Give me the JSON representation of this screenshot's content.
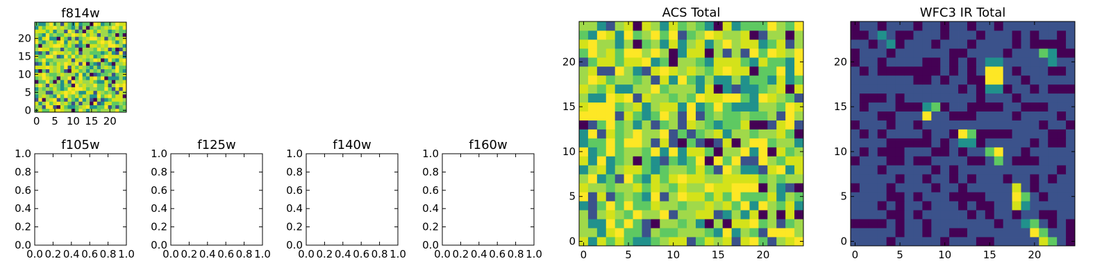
{
  "figure": {
    "colormap": [
      "#440154",
      "#3b528b",
      "#21918c",
      "#5ec962",
      "#a0d94a",
      "#d4e21a",
      "#fde725"
    ]
  },
  "chart_data": [
    {
      "type": "heatmap",
      "title": "f814w",
      "xticks": [
        "0",
        "5",
        "10",
        "15",
        "20"
      ],
      "yticks": [
        "0",
        "5",
        "10",
        "15",
        "20"
      ],
      "xlim": [
        -0.5,
        24.5
      ],
      "ylim": [
        -0.5,
        24.5
      ],
      "grid_size": 25,
      "pattern": "noise",
      "seed": 71
    },
    {
      "type": "empty",
      "title": "f105w",
      "xticks": [
        "0.0",
        "0.2",
        "0.4",
        "0.6",
        "0.8",
        "1.0"
      ],
      "yticks": [
        "0.0",
        "0.2",
        "0.4",
        "0.6",
        "0.8",
        "1.0"
      ],
      "xlim": [
        0,
        1
      ],
      "ylim": [
        0,
        1
      ]
    },
    {
      "type": "empty",
      "title": "f125w",
      "xticks": [
        "0.0",
        "0.2",
        "0.4",
        "0.6",
        "0.8",
        "1.0"
      ],
      "yticks": [
        "0.0",
        "0.2",
        "0.4",
        "0.6",
        "0.8",
        "1.0"
      ],
      "xlim": [
        0,
        1
      ],
      "ylim": [
        0,
        1
      ]
    },
    {
      "type": "empty",
      "title": "f140w",
      "xticks": [
        "0.0",
        "0.2",
        "0.4",
        "0.6",
        "0.8",
        "1.0"
      ],
      "yticks": [
        "0.0",
        "0.2",
        "0.4",
        "0.6",
        "0.8",
        "1.0"
      ],
      "xlim": [
        0,
        1
      ],
      "ylim": [
        0,
        1
      ]
    },
    {
      "type": "empty",
      "title": "f160w",
      "xticks": [
        "0.0",
        "0.2",
        "0.4",
        "0.6",
        "0.8",
        "1.0"
      ],
      "yticks": [
        "0.0",
        "0.2",
        "0.4",
        "0.6",
        "0.8",
        "1.0"
      ],
      "xlim": [
        0,
        1
      ],
      "ylim": [
        0,
        1
      ]
    },
    {
      "type": "heatmap",
      "title": "ACS Total",
      "xticks": [
        "0",
        "5",
        "10",
        "15",
        "20"
      ],
      "yticks": [
        "0",
        "5",
        "10",
        "15",
        "20"
      ],
      "xlim": [
        -0.5,
        24.5
      ],
      "ylim": [
        -0.5,
        24.5
      ],
      "grid_size": 25,
      "pattern": "noise",
      "seed": 1234
    },
    {
      "type": "heatmap",
      "title": "WFC3 IR Total",
      "xticks": [
        "0",
        "5",
        "10",
        "15",
        "20"
      ],
      "yticks": [
        "0",
        "5",
        "10",
        "15",
        "20"
      ],
      "xlim": [
        -0.5,
        24.5
      ],
      "ylim": [
        -0.5,
        24.5
      ],
      "grid_size": 25,
      "pattern": "sources",
      "seed": 999,
      "background": 0.1,
      "bright_pixels": [
        {
          "x": 15,
          "y": 19,
          "v": 1.0
        },
        {
          "x": 16,
          "y": 19,
          "v": 1.0
        },
        {
          "x": 15,
          "y": 18,
          "v": 1.0
        },
        {
          "x": 16,
          "y": 18,
          "v": 0.95
        },
        {
          "x": 15,
          "y": 20,
          "v": 0.3
        },
        {
          "x": 16,
          "y": 20,
          "v": 0.3
        },
        {
          "x": 15,
          "y": 17,
          "v": 0.35
        },
        {
          "x": 16,
          "y": 17,
          "v": 0.3
        },
        {
          "x": 14,
          "y": 19,
          "v": 0.2
        },
        {
          "x": 17,
          "y": 19,
          "v": 0.2
        },
        {
          "x": 21,
          "y": 21,
          "v": 0.55
        },
        {
          "x": 22,
          "y": 21,
          "v": 0.3
        },
        {
          "x": 22,
          "y": 20,
          "v": 0.25
        },
        {
          "x": 21,
          "y": 20,
          "v": 0.2
        },
        {
          "x": 8,
          "y": 14,
          "v": 0.95
        },
        {
          "x": 8,
          "y": 15,
          "v": 0.4
        },
        {
          "x": 9,
          "y": 15,
          "v": 0.5
        },
        {
          "x": 9,
          "y": 14,
          "v": 0.2
        },
        {
          "x": 12,
          "y": 12,
          "v": 0.95
        },
        {
          "x": 13,
          "y": 12,
          "v": 0.55
        },
        {
          "x": 12,
          "y": 11,
          "v": 0.4
        },
        {
          "x": 13,
          "y": 11,
          "v": 0.35
        },
        {
          "x": 16,
          "y": 10,
          "v": 0.95
        },
        {
          "x": 16,
          "y": 9,
          "v": 0.55
        },
        {
          "x": 15,
          "y": 10,
          "v": 0.45
        },
        {
          "x": 18,
          "y": 6,
          "v": 0.75
        },
        {
          "x": 18,
          "y": 5,
          "v": 1.0
        },
        {
          "x": 18,
          "y": 4,
          "v": 0.85
        },
        {
          "x": 19,
          "y": 5,
          "v": 0.45
        },
        {
          "x": 19,
          "y": 4,
          "v": 0.3
        },
        {
          "x": 20,
          "y": 1,
          "v": 1.0
        },
        {
          "x": 21,
          "y": 0,
          "v": 0.9
        },
        {
          "x": 21,
          "y": 1,
          "v": 0.5
        },
        {
          "x": 20,
          "y": 2,
          "v": 0.5
        },
        {
          "x": 22,
          "y": 0,
          "v": 0.45
        },
        {
          "x": 19,
          "y": 2,
          "v": 0.25
        },
        {
          "x": 3,
          "y": 23,
          "v": 0.3
        },
        {
          "x": 4,
          "y": 22,
          "v": 0.25
        },
        {
          "x": 17,
          "y": 14,
          "v": 0.18
        },
        {
          "x": 10,
          "y": 6,
          "v": 0.15
        }
      ]
    }
  ]
}
